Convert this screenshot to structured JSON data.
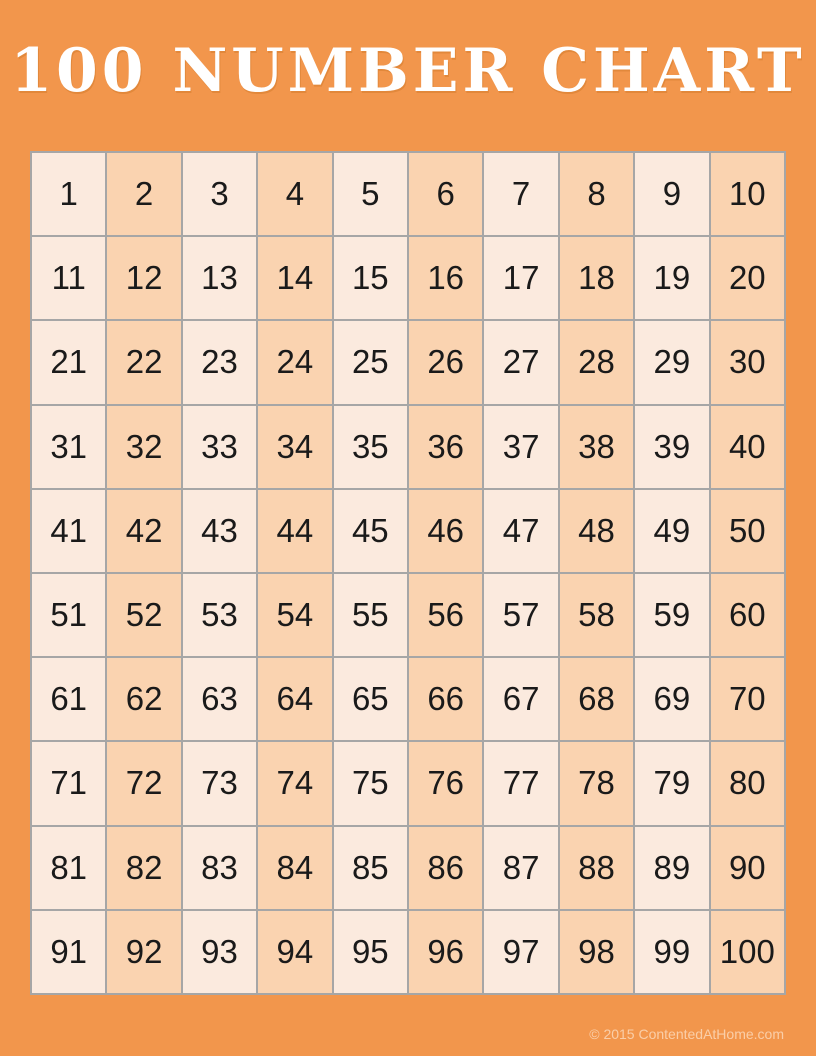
{
  "page": {
    "title": "100 NUMBER CHART",
    "footer": "© 2015 ContentedAtHome.com"
  },
  "colors": {
    "background": "#F2964C",
    "cell_light": "#FBEADE",
    "cell_dark": "#FAD3B0",
    "grid_line": "#A6A6A6",
    "number_text": "#1A1A1A",
    "title_text": "#FFFFFF",
    "footer_text": "rgba(255,240,225,0.62)"
  },
  "chart_data": {
    "type": "table",
    "title": "100 NUMBER CHART",
    "rows": [
      [
        1,
        2,
        3,
        4,
        5,
        6,
        7,
        8,
        9,
        10
      ],
      [
        11,
        12,
        13,
        14,
        15,
        16,
        17,
        18,
        19,
        20
      ],
      [
        21,
        22,
        23,
        24,
        25,
        26,
        27,
        28,
        29,
        30
      ],
      [
        31,
        32,
        33,
        34,
        35,
        36,
        37,
        38,
        39,
        40
      ],
      [
        41,
        42,
        43,
        44,
        45,
        46,
        47,
        48,
        49,
        50
      ],
      [
        51,
        52,
        53,
        54,
        55,
        56,
        57,
        58,
        59,
        60
      ],
      [
        61,
        62,
        63,
        64,
        65,
        66,
        67,
        68,
        69,
        70
      ],
      [
        71,
        72,
        73,
        74,
        75,
        76,
        77,
        78,
        79,
        80
      ],
      [
        81,
        82,
        83,
        84,
        85,
        86,
        87,
        88,
        89,
        90
      ],
      [
        91,
        92,
        93,
        94,
        95,
        96,
        97,
        98,
        99,
        100
      ]
    ],
    "layout": {
      "grid_columns": 10,
      "grid_rows": 10,
      "column_striping": "odd columns light, even columns dark"
    }
  }
}
